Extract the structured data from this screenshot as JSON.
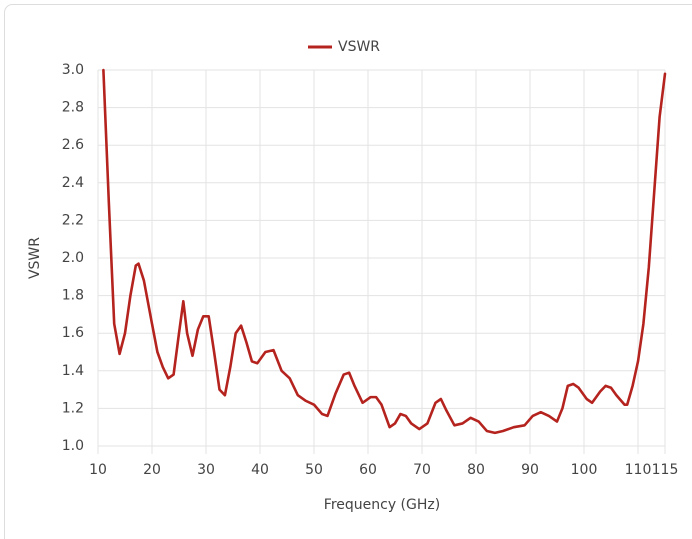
{
  "chart_data": {
    "type": "line",
    "legend": "top",
    "grid": true,
    "xlabel": "Frequency (GHz)",
    "ylabel": "VSWR",
    "xlim": [
      10,
      115
    ],
    "xticks": [
      10,
      20,
      30,
      40,
      50,
      60,
      70,
      80,
      90,
      100,
      110,
      115
    ],
    "ylim": [
      1,
      3
    ],
    "yticks": [
      {
        "value": 1,
        "label": "1.0"
      },
      1.2,
      1.4,
      1.6,
      1.8,
      {
        "value": 2,
        "label": "2.0"
      },
      2.2,
      2.4,
      2.6,
      2.8,
      {
        "value": 3,
        "label": "3.0"
      }
    ],
    "x": [
      11,
      12,
      13,
      14,
      15,
      16,
      17,
      17.5,
      18.5,
      20,
      21,
      22,
      23,
      24,
      25,
      25.8,
      26.5,
      27.5,
      28.5,
      29.5,
      30.5,
      31.5,
      32.5,
      33.5,
      34.5,
      35.5,
      36.5,
      37.5,
      38.5,
      39.5,
      41,
      42.5,
      44,
      45.5,
      47,
      48.5,
      50,
      51.5,
      52.5,
      54,
      55.5,
      56.5,
      57.5,
      59,
      60.5,
      61.5,
      62.5,
      64,
      65,
      66,
      67,
      68,
      69.5,
      71,
      72.5,
      73.5,
      74.5,
      76,
      77.5,
      79,
      80.5,
      82,
      83.5,
      85,
      87,
      89,
      90.5,
      92,
      93.5,
      95,
      96,
      97,
      98,
      99,
      100.5,
      101.5,
      103,
      104,
      105,
      106,
      107.5,
      108,
      109,
      110,
      111,
      112,
      113,
      114,
      115
    ],
    "series": [
      {
        "name": "VSWR",
        "color": "#b5231f",
        "values": [
          3.0,
          2.3,
          1.65,
          1.49,
          1.6,
          1.8,
          1.96,
          1.97,
          1.88,
          1.65,
          1.5,
          1.42,
          1.36,
          1.38,
          1.6,
          1.77,
          1.6,
          1.48,
          1.62,
          1.69,
          1.69,
          1.5,
          1.3,
          1.27,
          1.42,
          1.6,
          1.64,
          1.55,
          1.45,
          1.44,
          1.5,
          1.51,
          1.4,
          1.36,
          1.27,
          1.24,
          1.22,
          1.17,
          1.16,
          1.28,
          1.38,
          1.39,
          1.32,
          1.23,
          1.26,
          1.26,
          1.22,
          1.1,
          1.12,
          1.17,
          1.16,
          1.12,
          1.09,
          1.12,
          1.23,
          1.25,
          1.19,
          1.11,
          1.12,
          1.15,
          1.13,
          1.08,
          1.07,
          1.08,
          1.1,
          1.11,
          1.16,
          1.18,
          1.16,
          1.13,
          1.2,
          1.32,
          1.33,
          1.31,
          1.25,
          1.23,
          1.29,
          1.32,
          1.31,
          1.27,
          1.22,
          1.22,
          1.32,
          1.45,
          1.65,
          1.95,
          2.35,
          2.75,
          2.98
        ]
      }
    ]
  }
}
